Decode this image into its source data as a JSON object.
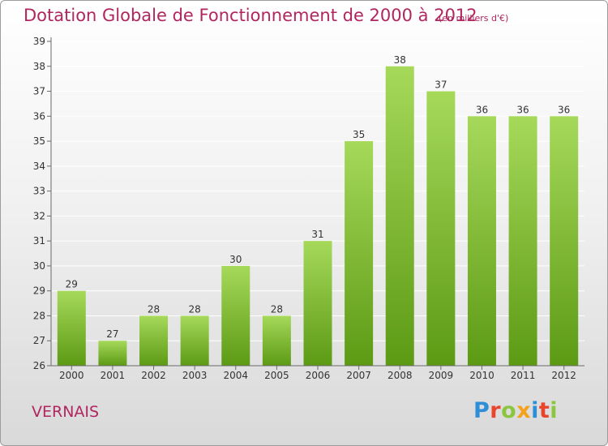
{
  "header": {
    "title": "Dotation Globale de Fonctionnement de 2000 à 2012",
    "subtitle": "(en milliers d'€)"
  },
  "footer": {
    "commune": "VERNAIS",
    "logo": {
      "text": "Proxiti",
      "letter_colors": [
        "#2f8fd6",
        "#e8452c",
        "#8cc63f",
        "#f6a11b",
        "#2f8fd6",
        "#e8452c",
        "#8cc63f"
      ]
    }
  },
  "colors": {
    "title": "#b0265f",
    "bar_light": "#a6d95a",
    "bar_dark": "#5c9a14",
    "grid": "#ffffff",
    "axis": "#6a6a6a",
    "text": "#333333"
  },
  "chart_data": {
    "type": "bar",
    "categories": [
      "2000",
      "2001",
      "2002",
      "2003",
      "2004",
      "2005",
      "2006",
      "2007",
      "2008",
      "2009",
      "2010",
      "2011",
      "2012"
    ],
    "values": [
      29,
      27,
      28,
      28,
      30,
      28,
      31,
      35,
      38,
      37,
      36,
      36,
      36
    ],
    "data_labels": [
      "29",
      "27",
      "28",
      "28",
      "30",
      "28",
      "31",
      "35",
      "38",
      "37",
      "36",
      "36",
      "36"
    ],
    "yticks": [
      "26",
      "27",
      "28",
      "29",
      "30",
      "31",
      "32",
      "33",
      "34",
      "35",
      "36",
      "37",
      "38",
      "39"
    ],
    "ylim": [
      26,
      39
    ],
    "grid": true,
    "title": "Dotation Globale de Fonctionnement de 2000 à 2012",
    "subtitle": "(en milliers d'€)"
  }
}
